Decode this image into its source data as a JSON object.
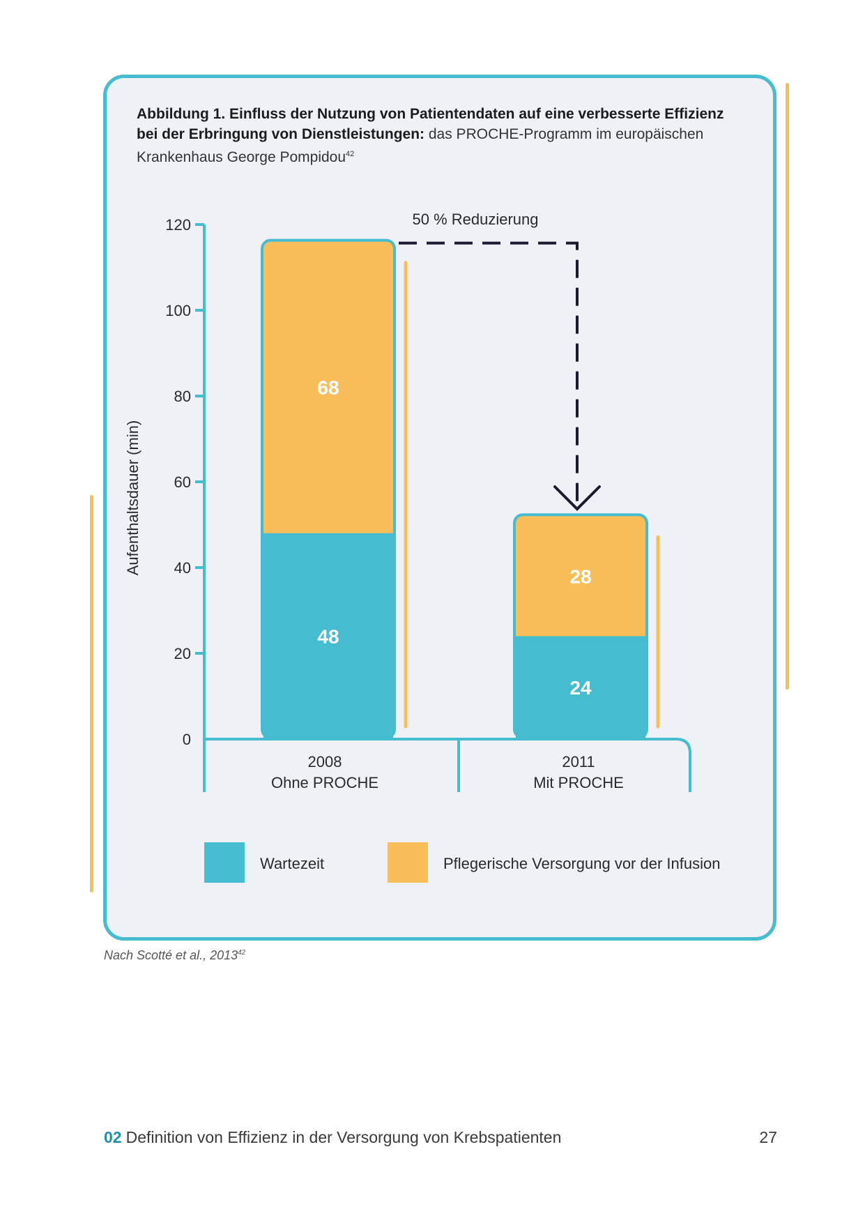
{
  "caption": {
    "bold": "Abbildung 1. Einfluss der Nutzung von Patientendaten auf eine verbesserte Effizienz bei der Erbringung von Dienstleistungen:",
    "rest": " das PROCHE-Programm im europäischen Krankenhaus George Pompidou",
    "ref": "42"
  },
  "chart_data": {
    "type": "bar",
    "stacked": true,
    "title": "Abbildung 1. Einfluss der Nutzung von Patientendaten auf eine verbesserte Effizienz bei der Erbringung von Dienstleistungen",
    "ylabel": "Aufenthaltsdauer (min)",
    "ylim": [
      0,
      120
    ],
    "yticks": [
      0,
      20,
      40,
      60,
      80,
      100,
      120
    ],
    "categories": [
      {
        "year": "2008",
        "label": "Ohne PROCHE"
      },
      {
        "year": "2011",
        "label": "Mit PROCHE"
      }
    ],
    "series": [
      {
        "name": "Wartezeit",
        "color": "#45bcd0",
        "values": [
          48,
          24
        ]
      },
      {
        "name": "Pflegerische Versorgung vor der Infusion",
        "color": "#f7be5a",
        "values": [
          68,
          28
        ]
      }
    ],
    "annotation": "50 % Reduzierung",
    "legend_position": "bottom"
  },
  "colors": {
    "teal": "#45bcd0",
    "orange": "#f7be5a",
    "arrow": "#1c1a30"
  },
  "note": {
    "text": "Nach Scotté et al., 2013",
    "ref": "42"
  },
  "footer": {
    "section_number": "02",
    "section_title": "Definition von Effizienz in der Versorgung von Krebspatienten",
    "page_number": "27"
  }
}
